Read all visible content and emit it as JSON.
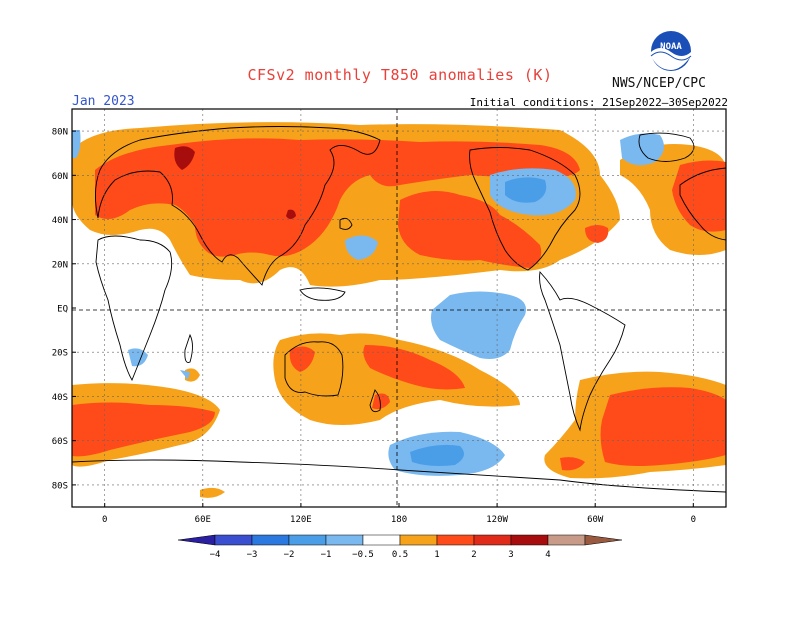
{
  "title": "CFSv2 monthly T850 anomalies (K)",
  "valid_month": "Jan 2023",
  "initial_conditions": "Initial conditions: 21Sep2022–30Sep2022",
  "agency": "NWS/NCEP/CPC",
  "logo_text": "NOAA",
  "map": {
    "lat_labels": [
      "80N",
      "60N",
      "40N",
      "20N",
      "EQ",
      "20S",
      "40S",
      "60S",
      "80S"
    ],
    "lat_values": [
      80,
      60,
      40,
      20,
      0,
      -20,
      -40,
      -60,
      -80
    ],
    "lon_labels": [
      "0",
      "60E",
      "120E",
      "180",
      "120W",
      "60W",
      "0"
    ],
    "lon_values": [
      0,
      60,
      120,
      180,
      240,
      300,
      360
    ],
    "lon_range": [
      -20,
      380
    ],
    "lat_range": [
      -90,
      90
    ]
  },
  "colorbar": {
    "labels": [
      "−4",
      "−3",
      "−2",
      "−1",
      "−0.5",
      "0.5",
      "1",
      "2",
      "3",
      "4"
    ],
    "colors": [
      "#2a1fa0",
      "#3a4fd0",
      "#2a78e0",
      "#4a9ee8",
      "#7ab8f0",
      "#ffffff",
      "#f7a21b",
      "#ff4a1a",
      "#e02a1a",
      "#a80d0d",
      "#c89a88",
      "#9a5a40"
    ]
  }
}
